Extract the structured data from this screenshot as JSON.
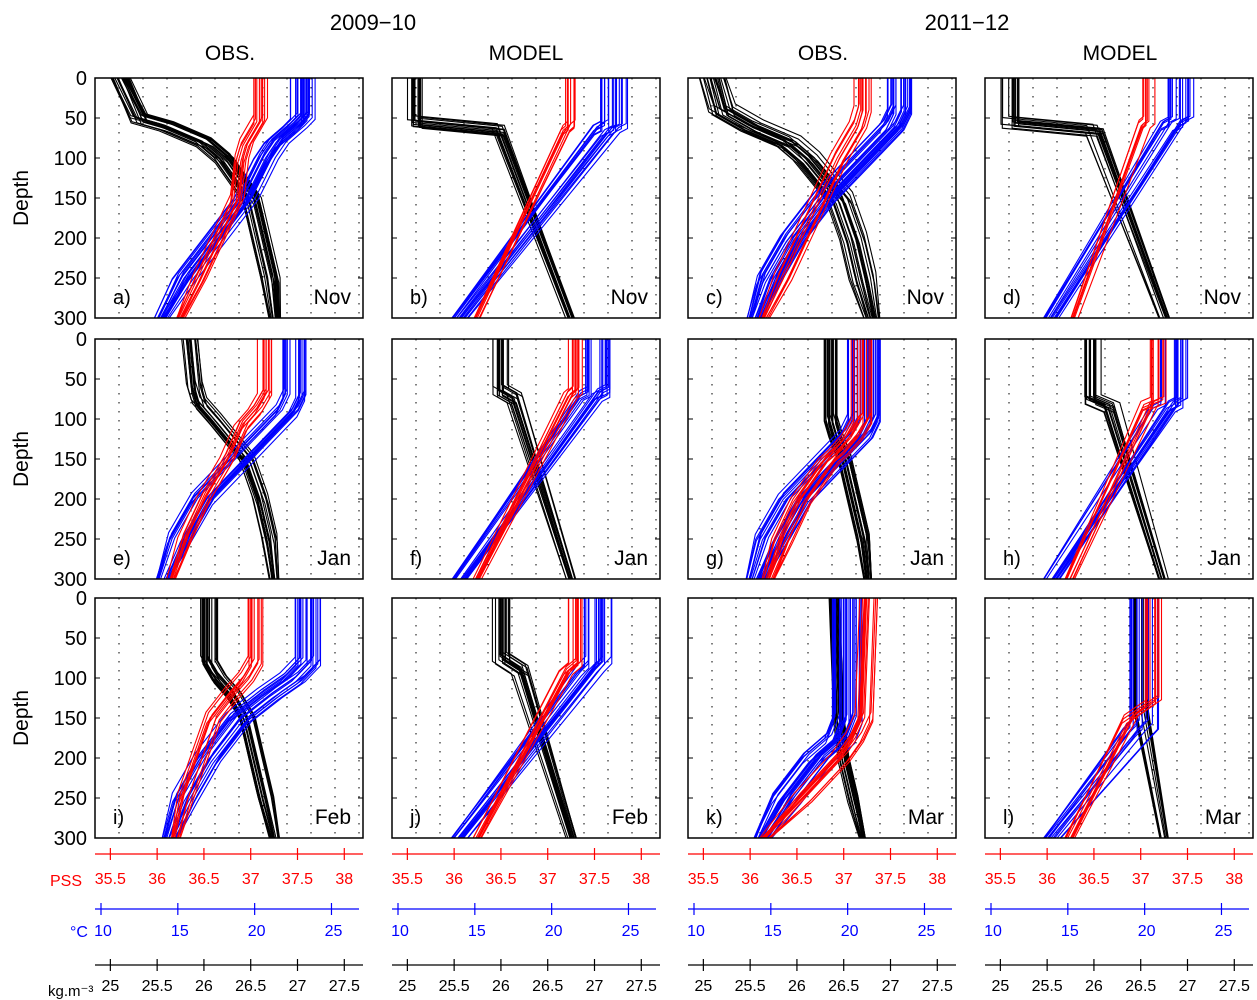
{
  "figure": {
    "period_titles": [
      "2009−10",
      "2011−12"
    ],
    "column_titles": [
      "OBS.",
      "MODEL",
      "OBS.",
      "MODEL"
    ],
    "row_ylabel": "Depth",
    "y_ticks": [
      "0",
      "50",
      "100",
      "150",
      "200",
      "250",
      "300"
    ],
    "months": [
      "Nov",
      "Nov",
      "Nov",
      "Nov",
      "Jan",
      "Jan",
      "Jan",
      "Jan",
      "Feb",
      "Feb",
      "Mar",
      "Mar"
    ],
    "panel_letters": [
      "a)",
      "b)",
      "c)",
      "d)",
      "e)",
      "f)",
      "g)",
      "h)",
      "i)",
      "j)",
      "k)",
      "l)"
    ],
    "salinity_axis_label": "PSS",
    "temperature_axis_label": "°C",
    "density_axis_label": "kg.m⁻³",
    "salinity_ticks": [
      "35.5",
      "36",
      "36.5",
      "37",
      "37.5",
      "38"
    ],
    "temperature_ticks": [
      "10",
      "15",
      "20",
      "25"
    ],
    "density_ticks": [
      "25",
      "25.5",
      "26",
      "26.5",
      "27",
      "27.5"
    ]
  },
  "colors": {
    "salinity": "#ff0000",
    "temperature": "#0000ff",
    "density": "#000000",
    "grid": "#000000"
  },
  "chart_data": [
    {
      "panel": "a)",
      "period": "2009−10",
      "source": "OBS.",
      "month": "Nov",
      "type": "line",
      "ylabel": "Depth",
      "ylim": [
        300,
        0
      ],
      "series": [
        {
          "name": "PSS",
          "values_depth": [
            0,
            50,
            60,
            80,
            100,
            150,
            200,
            250,
            300
          ],
          "values_x": [
            37.1,
            37.1,
            37.05,
            36.95,
            36.9,
            36.85,
            36.65,
            36.45,
            36.25
          ],
          "spread": 0.08,
          "count": 10
        },
        {
          "name": "°C",
          "values_depth": [
            0,
            50,
            60,
            80,
            100,
            150,
            200,
            250,
            300
          ],
          "values_x": [
            23.2,
            23.2,
            22.7,
            21.5,
            20.8,
            19.5,
            17.5,
            15.5,
            14.0
          ],
          "spread": 0.9,
          "count": 22
        },
        {
          "name": "kg.m⁻³",
          "values_depth": [
            0,
            50,
            60,
            80,
            100,
            150,
            200,
            250,
            300
          ],
          "values_x": [
            25.1,
            25.3,
            25.6,
            26.0,
            26.2,
            26.5,
            26.6,
            26.7,
            26.75
          ],
          "spread": 0.12,
          "count": 22
        }
      ]
    },
    {
      "panel": "b)",
      "period": "2009−10",
      "source": "MODEL",
      "month": "Nov",
      "type": "line",
      "ylabel": "Depth",
      "ylim": [
        300,
        0
      ],
      "series": [
        {
          "name": "PSS",
          "values_depth": [
            0,
            60,
            65,
            300
          ],
          "values_x": [
            37.25,
            37.25,
            37.2,
            36.25
          ],
          "spread": 0.08,
          "count": 10
        },
        {
          "name": "°C",
          "values_depth": [
            0,
            60,
            65,
            300
          ],
          "values_x": [
            24.0,
            24.0,
            23.5,
            14.0
          ],
          "spread": 1.0,
          "count": 18
        },
        {
          "name": "kg.m⁻³",
          "values_depth": [
            0,
            55,
            65,
            300
          ],
          "values_x": [
            25.1,
            25.1,
            26.0,
            26.75
          ],
          "spread": 0.1,
          "count": 18
        }
      ]
    },
    {
      "panel": "c)",
      "period": "2011−12",
      "source": "OBS.",
      "month": "Nov",
      "type": "line",
      "ylabel": "Depth",
      "ylim": [
        300,
        0
      ],
      "series": [
        {
          "name": "PSS",
          "values_depth": [
            0,
            40,
            60,
            80,
            100,
            150,
            200,
            250,
            300
          ],
          "values_x": [
            37.2,
            37.2,
            37.15,
            37.05,
            36.95,
            36.75,
            36.55,
            36.35,
            36.15
          ],
          "spread": 0.1,
          "count": 10
        },
        {
          "name": "°C",
          "values_depth": [
            0,
            40,
            60,
            80,
            100,
            150,
            200,
            250,
            300
          ],
          "values_x": [
            23.5,
            23.5,
            23.0,
            22.0,
            21.0,
            18.5,
            16.5,
            15.0,
            14.0
          ],
          "spread": 1.0,
          "count": 24
        },
        {
          "name": "kg.m⁻³",
          "values_depth": [
            0,
            40,
            60,
            80,
            100,
            150,
            200,
            250,
            300
          ],
          "values_x": [
            25.1,
            25.2,
            25.5,
            25.9,
            26.1,
            26.45,
            26.6,
            26.7,
            26.8
          ],
          "spread": 0.15,
          "count": 24
        }
      ]
    },
    {
      "panel": "d)",
      "period": "2011−12",
      "source": "MODEL",
      "month": "Nov",
      "type": "line",
      "ylabel": "Depth",
      "ylim": [
        300,
        0
      ],
      "series": [
        {
          "name": "PSS",
          "values_depth": [
            0,
            55,
            60,
            300
          ],
          "values_x": [
            37.1,
            37.1,
            37.05,
            36.3
          ],
          "spread": 0.08,
          "count": 8
        },
        {
          "name": "°C",
          "values_depth": [
            0,
            55,
            60,
            300
          ],
          "values_x": [
            22.5,
            22.5,
            22.0,
            14.0
          ],
          "spread": 1.0,
          "count": 16
        },
        {
          "name": "kg.m⁻³",
          "values_depth": [
            0,
            55,
            65,
            300
          ],
          "values_x": [
            25.1,
            25.1,
            26.0,
            26.75
          ],
          "spread": 0.1,
          "count": 16
        }
      ]
    },
    {
      "panel": "e)",
      "period": "2009−10",
      "source": "OBS.",
      "month": "Jan",
      "type": "line",
      "ylabel": "Depth",
      "ylim": [
        300,
        0
      ],
      "series": [
        {
          "name": "PSS",
          "values_depth": [
            0,
            70,
            90,
            110,
            150,
            200,
            250,
            300
          ],
          "values_x": [
            37.15,
            37.15,
            37.05,
            36.9,
            36.75,
            36.5,
            36.3,
            36.15
          ],
          "spread": 0.08,
          "count": 10
        },
        {
          "name": "°C",
          "values_depth": [
            0,
            70,
            90,
            110,
            150,
            200,
            250,
            300
          ],
          "values_x": [
            22.5,
            22.5,
            22.0,
            21.0,
            19.0,
            16.5,
            15.0,
            14.0
          ],
          "spread": 0.9,
          "count": 20
        },
        {
          "name": "kg.m⁻³",
          "values_depth": [
            0,
            60,
            80,
            100,
            150,
            200,
            250,
            300
          ],
          "values_x": [
            25.85,
            25.9,
            25.95,
            26.1,
            26.45,
            26.6,
            26.7,
            26.75
          ],
          "spread": 0.1,
          "count": 18
        }
      ]
    },
    {
      "panel": "f)",
      "period": "2009−10",
      "source": "MODEL",
      "month": "Jan",
      "type": "line",
      "ylabel": "Depth",
      "ylim": [
        300,
        0
      ],
      "series": [
        {
          "name": "PSS",
          "values_depth": [
            0,
            65,
            70,
            300
          ],
          "values_x": [
            37.3,
            37.3,
            37.25,
            36.25
          ],
          "spread": 0.08,
          "count": 10
        },
        {
          "name": "°C",
          "values_depth": [
            0,
            65,
            70,
            300
          ],
          "values_x": [
            23.0,
            23.0,
            22.5,
            14.0
          ],
          "spread": 1.0,
          "count": 18
        },
        {
          "name": "kg.m⁻³",
          "values_depth": [
            0,
            65,
            75,
            300
          ],
          "values_x": [
            26.0,
            26.0,
            26.15,
            26.75
          ],
          "spread": 0.1,
          "count": 18
        }
      ]
    },
    {
      "panel": "g)",
      "period": "2011−12",
      "source": "OBS.",
      "month": "Jan",
      "type": "line",
      "ylabel": "Depth",
      "ylim": [
        300,
        0
      ],
      "series": [
        {
          "name": "PSS",
          "values_depth": [
            0,
            100,
            120,
            140,
            150,
            200,
            250,
            300
          ],
          "values_x": [
            37.2,
            37.2,
            37.1,
            36.95,
            36.85,
            36.55,
            36.35,
            36.2
          ],
          "spread": 0.12,
          "count": 14
        },
        {
          "name": "°C",
          "values_depth": [
            0,
            100,
            120,
            140,
            150,
            200,
            250,
            300
          ],
          "values_x": [
            21.0,
            21.0,
            20.5,
            19.5,
            19.0,
            16.5,
            15.0,
            14.0
          ],
          "spread": 1.2,
          "count": 28
        },
        {
          "name": "kg.m⁻³",
          "values_depth": [
            0,
            100,
            120,
            150,
            200,
            250,
            300
          ],
          "values_x": [
            26.35,
            26.35,
            26.4,
            26.5,
            26.6,
            26.7,
            26.75
          ],
          "spread": 0.08,
          "count": 24
        }
      ]
    },
    {
      "panel": "h)",
      "period": "2011−12",
      "source": "MODEL",
      "month": "Jan",
      "type": "line",
      "ylabel": "Depth",
      "ylim": [
        300,
        0
      ],
      "series": [
        {
          "name": "PSS",
          "values_depth": [
            0,
            80,
            85,
            300
          ],
          "values_x": [
            37.2,
            37.2,
            37.1,
            36.25
          ],
          "spread": 0.1,
          "count": 10
        },
        {
          "name": "°C",
          "values_depth": [
            0,
            80,
            85,
            300
          ],
          "values_x": [
            22.0,
            22.0,
            21.5,
            14.0
          ],
          "spread": 1.0,
          "count": 16
        },
        {
          "name": "kg.m⁻³",
          "values_depth": [
            0,
            75,
            85,
            300
          ],
          "values_x": [
            26.0,
            26.0,
            26.2,
            26.75
          ],
          "spread": 0.1,
          "count": 16
        }
      ]
    },
    {
      "panel": "i)",
      "period": "2009−10",
      "source": "OBS.",
      "month": "Feb",
      "type": "line",
      "ylabel": "Depth",
      "ylim": [
        300,
        0
      ],
      "series": [
        {
          "name": "PSS",
          "values_depth": [
            0,
            80,
            100,
            120,
            150,
            200,
            250,
            300
          ],
          "values_x": [
            37.05,
            37.05,
            36.95,
            36.8,
            36.6,
            36.45,
            36.3,
            36.2
          ],
          "spread": 0.08,
          "count": 10
        },
        {
          "name": "°C",
          "values_depth": [
            0,
            80,
            100,
            120,
            150,
            200,
            250,
            300
          ],
          "values_x": [
            23.5,
            23.5,
            22.5,
            21.0,
            19.0,
            17.0,
            15.5,
            14.5
          ],
          "spread": 0.9,
          "count": 20
        },
        {
          "name": "kg.m⁻³",
          "values_depth": [
            0,
            80,
            100,
            120,
            150,
            200,
            250,
            300
          ],
          "values_x": [
            26.05,
            26.05,
            26.15,
            26.3,
            26.45,
            26.55,
            26.65,
            26.75
          ],
          "spread": 0.1,
          "count": 20
        }
      ]
    },
    {
      "panel": "j)",
      "period": "2009−10",
      "source": "MODEL",
      "month": "Feb",
      "type": "line",
      "ylabel": "Depth",
      "ylim": [
        300,
        0
      ],
      "series": [
        {
          "name": "PSS",
          "values_depth": [
            0,
            80,
            90,
            300
          ],
          "values_x": [
            37.3,
            37.3,
            37.2,
            36.25
          ],
          "spread": 0.08,
          "count": 10
        },
        {
          "name": "°C",
          "values_depth": [
            0,
            80,
            90,
            300
          ],
          "values_x": [
            23.0,
            23.0,
            22.5,
            14.0
          ],
          "spread": 1.0,
          "count": 18
        },
        {
          "name": "kg.m⁻³",
          "values_depth": [
            0,
            75,
            90,
            300
          ],
          "values_x": [
            26.0,
            26.0,
            26.2,
            26.75
          ],
          "spread": 0.1,
          "count": 18
        }
      ]
    },
    {
      "panel": "k)",
      "period": "2011−12",
      "source": "OBS.",
      "month": "Mar",
      "type": "line",
      "ylabel": "Depth",
      "ylim": [
        300,
        0
      ],
      "series": [
        {
          "name": "PSS",
          "values_depth": [
            0,
            150,
            175,
            200,
            250,
            300
          ],
          "values_x": [
            37.25,
            37.2,
            37.1,
            36.95,
            36.55,
            36.15
          ],
          "spread": 0.12,
          "count": 14
        },
        {
          "name": "°C",
          "values_depth": [
            0,
            150,
            175,
            200,
            250,
            300
          ],
          "values_x": [
            20.0,
            20.0,
            19.5,
            18.0,
            16.0,
            14.5
          ],
          "spread": 1.0,
          "count": 26
        },
        {
          "name": "kg.m⁻³",
          "values_depth": [
            0,
            150,
            200,
            250,
            300
          ],
          "values_x": [
            26.4,
            26.45,
            26.5,
            26.6,
            26.7
          ],
          "spread": 0.06,
          "count": 22
        }
      ]
    },
    {
      "panel": "l)",
      "period": "2011−12",
      "source": "MODEL",
      "month": "Mar",
      "type": "line",
      "ylabel": "Depth",
      "ylim": [
        300,
        0
      ],
      "series": [
        {
          "name": "PSS",
          "values_depth": [
            0,
            130,
            150,
            300
          ],
          "values_x": [
            37.15,
            37.15,
            36.9,
            36.25
          ],
          "spread": 0.12,
          "count": 10
        },
        {
          "name": "°C",
          "values_depth": [
            0,
            160,
            170,
            300
          ],
          "values_x": [
            20.0,
            20.0,
            19.5,
            14.0
          ],
          "spread": 1.0,
          "count": 14
        },
        {
          "name": "kg.m⁻³",
          "values_depth": [
            0,
            140,
            300
          ],
          "values_x": [
            26.5,
            26.5,
            26.75
          ],
          "spread": 0.08,
          "count": 14
        }
      ]
    }
  ],
  "axes": {
    "salinity_range": [
      35.5,
      38.0
    ],
    "temperature_range": [
      10,
      25
    ],
    "density_range": [
      25,
      27.5
    ],
    "depth_range": [
      0,
      300
    ]
  }
}
